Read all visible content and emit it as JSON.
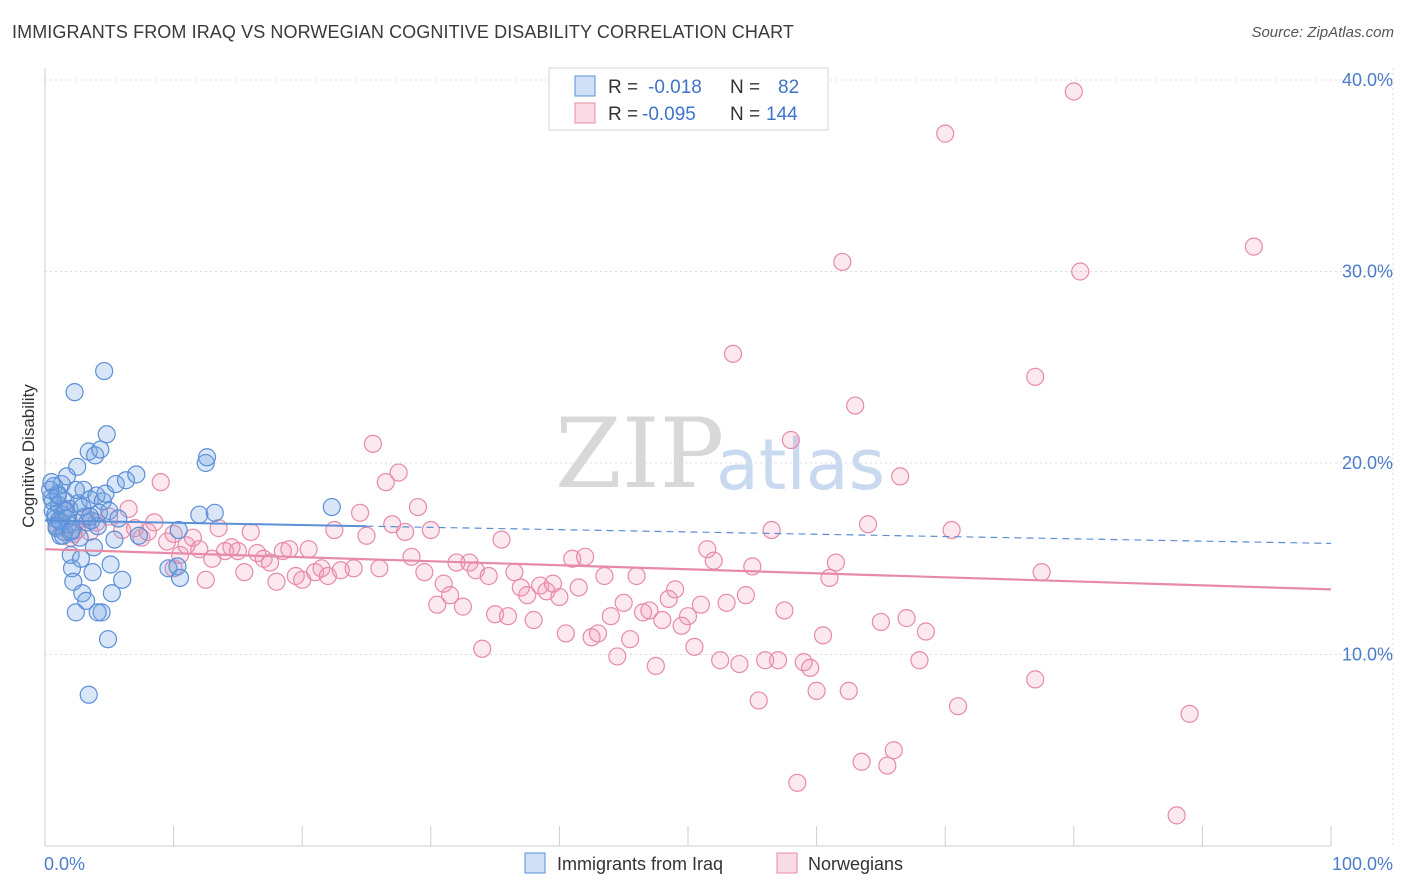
{
  "title": "IMMIGRANTS FROM IRAQ VS NORWEGIAN COGNITIVE DISABILITY CORRELATION CHART",
  "source": "Source: ZipAtlas.com",
  "watermark": {
    "zip": "ZIP",
    "atlas": "atlas"
  },
  "colors": {
    "iraq": "#5b8fd6",
    "norwegians": "#e68aa8",
    "accent": "#4a7cc9"
  },
  "legend": {
    "rows": [
      {
        "r_label": "R =",
        "r_value": "-0.018",
        "n_label": "N =",
        "n_value": "82"
      },
      {
        "r_label": "R =",
        "r_value": "-0.095",
        "n_label": "N =",
        "n_value": "144"
      }
    ]
  },
  "chart_data": {
    "type": "scatter",
    "title": "IMMIGRANTS FROM IRAQ VS NORWEGIAN COGNITIVE DISABILITY CORRELATION CHART",
    "xlabel": "",
    "ylabel": "Cognitive Disability",
    "xlim": [
      0,
      100
    ],
    "ylim": [
      0,
      40
    ],
    "x_tick_labels": [
      "0.0%",
      "100.0%"
    ],
    "y_ticks": [
      10,
      20,
      30,
      40
    ],
    "y_tick_labels": [
      "10.0%",
      "20.0%",
      "30.0%",
      "40.0%"
    ],
    "series": [
      {
        "name": "Immigrants from Iraq",
        "r": -0.018,
        "n": 82,
        "trend": {
          "x": [
            0,
            25,
            100
          ],
          "y": [
            17.0,
            16.7,
            15.8
          ],
          "solid_until": 25
        },
        "points": [
          [
            0.5,
            18.2
          ],
          [
            0.6,
            17.5
          ],
          [
            0.7,
            18.8
          ],
          [
            0.8,
            17.1
          ],
          [
            0.9,
            16.6
          ],
          [
            1.0,
            18.4
          ],
          [
            1.1,
            17.8
          ],
          [
            1.2,
            16.2
          ],
          [
            1.3,
            18.9
          ],
          [
            1.4,
            17.3
          ],
          [
            1.5,
            16.4
          ],
          [
            1.6,
            18.0
          ],
          [
            1.7,
            19.3
          ],
          [
            1.8,
            16.8
          ],
          [
            1.9,
            17.6
          ],
          [
            2.0,
            15.2
          ],
          [
            2.1,
            14.5
          ],
          [
            2.2,
            13.8
          ],
          [
            2.3,
            23.7
          ],
          [
            2.4,
            12.2
          ],
          [
            2.5,
            19.8
          ],
          [
            2.6,
            17.9
          ],
          [
            2.7,
            16.1
          ],
          [
            2.8,
            15.0
          ],
          [
            2.9,
            13.2
          ],
          [
            3.0,
            18.6
          ],
          [
            3.1,
            17.2
          ],
          [
            3.2,
            12.8
          ],
          [
            3.3,
            16.9
          ],
          [
            3.4,
            20.6
          ],
          [
            3.5,
            18.1
          ],
          [
            3.6,
            17.0
          ],
          [
            3.7,
            14.3
          ],
          [
            3.8,
            15.6
          ],
          [
            3.9,
            20.4
          ],
          [
            4.0,
            18.3
          ],
          [
            4.1,
            16.7
          ],
          [
            4.2,
            17.4
          ],
          [
            4.3,
            20.7
          ],
          [
            4.4,
            12.2
          ],
          [
            4.5,
            18.0
          ],
          [
            4.6,
            24.8
          ],
          [
            4.7,
            18.4
          ],
          [
            4.8,
            21.5
          ],
          [
            4.9,
            10.8
          ],
          [
            5.0,
            17.5
          ],
          [
            5.1,
            14.7
          ],
          [
            5.2,
            13.2
          ],
          [
            5.4,
            16.0
          ],
          [
            5.5,
            18.9
          ],
          [
            5.7,
            17.1
          ],
          [
            6.0,
            13.9
          ],
          [
            6.3,
            19.1
          ],
          [
            7.1,
            19.4
          ],
          [
            7.3,
            16.2
          ],
          [
            9.6,
            14.5
          ],
          [
            10.3,
            14.6
          ],
          [
            10.4,
            16.5
          ],
          [
            10.5,
            14.0
          ],
          [
            12.0,
            17.3
          ],
          [
            12.5,
            20.0
          ],
          [
            12.6,
            20.3
          ],
          [
            13.2,
            17.4
          ],
          [
            22.3,
            17.7
          ],
          [
            3.4,
            7.9
          ],
          [
            0.6,
            18.0
          ],
          [
            0.8,
            17.3
          ],
          [
            1.0,
            18.3
          ],
          [
            1.2,
            16.9
          ],
          [
            1.4,
            16.2
          ],
          [
            1.6,
            17.5
          ],
          [
            2.4,
            18.6
          ],
          [
            2.9,
            17.7
          ],
          [
            3.5,
            17.2
          ],
          [
            1.1,
            17.0
          ],
          [
            0.9,
            16.7
          ],
          [
            1.7,
            17.1
          ],
          [
            2.1,
            16.5
          ],
          [
            0.4,
            18.6
          ],
          [
            0.5,
            19.0
          ],
          [
            2.0,
            16.4
          ],
          [
            4.1,
            12.2
          ]
        ]
      },
      {
        "name": "Norwegians",
        "r": -0.095,
        "n": 144,
        "trend": {
          "x": [
            0,
            100
          ],
          "y": [
            15.5,
            13.4
          ]
        },
        "points": [
          [
            1.0,
            16.8
          ],
          [
            1.5,
            17.6
          ],
          [
            2.0,
            16.1
          ],
          [
            2.5,
            16.5
          ],
          [
            3.0,
            17.1
          ],
          [
            4.0,
            16.9
          ],
          [
            5.0,
            17.2
          ],
          [
            6.0,
            16.5
          ],
          [
            6.5,
            17.6
          ],
          [
            7.0,
            16.6
          ],
          [
            7.5,
            16.1
          ],
          [
            8.0,
            16.4
          ],
          [
            8.5,
            16.9
          ],
          [
            9.0,
            19.0
          ],
          [
            9.5,
            15.9
          ],
          [
            10.0,
            14.5
          ],
          [
            10.5,
            15.2
          ],
          [
            11.0,
            15.7
          ],
          [
            11.5,
            16.1
          ],
          [
            12.0,
            15.5
          ],
          [
            12.5,
            13.9
          ],
          [
            13.0,
            15.0
          ],
          [
            13.5,
            16.6
          ],
          [
            14.0,
            15.4
          ],
          [
            14.5,
            15.6
          ],
          [
            15.0,
            15.4
          ],
          [
            15.5,
            14.3
          ],
          [
            16.0,
            16.4
          ],
          [
            16.5,
            15.3
          ],
          [
            17.0,
            15.0
          ],
          [
            17.5,
            14.8
          ],
          [
            18.0,
            13.8
          ],
          [
            18.5,
            15.4
          ],
          [
            19.0,
            15.5
          ],
          [
            19.5,
            14.1
          ],
          [
            20.0,
            13.9
          ],
          [
            20.5,
            15.5
          ],
          [
            21.0,
            14.3
          ],
          [
            21.5,
            14.5
          ],
          [
            22.0,
            14.1
          ],
          [
            22.5,
            16.5
          ],
          [
            23.0,
            14.4
          ],
          [
            24.0,
            14.5
          ],
          [
            24.5,
            17.4
          ],
          [
            25.0,
            16.2
          ],
          [
            25.5,
            21.0
          ],
          [
            26.0,
            14.5
          ],
          [
            26.5,
            19.0
          ],
          [
            27.0,
            16.8
          ],
          [
            27.5,
            19.5
          ],
          [
            28.0,
            16.4
          ],
          [
            28.5,
            15.1
          ],
          [
            29.0,
            17.7
          ],
          [
            29.5,
            14.3
          ],
          [
            30.0,
            16.5
          ],
          [
            30.5,
            12.6
          ],
          [
            31.0,
            13.7
          ],
          [
            31.5,
            13.1
          ],
          [
            32.0,
            14.8
          ],
          [
            32.5,
            12.5
          ],
          [
            33.0,
            14.8
          ],
          [
            33.5,
            14.4
          ],
          [
            34.0,
            10.3
          ],
          [
            34.5,
            14.1
          ],
          [
            35.0,
            12.1
          ],
          [
            35.5,
            16.0
          ],
          [
            36.0,
            12.0
          ],
          [
            36.5,
            14.3
          ],
          [
            37.0,
            13.5
          ],
          [
            37.5,
            13.1
          ],
          [
            38.0,
            11.8
          ],
          [
            38.5,
            13.6
          ],
          [
            39.0,
            13.3
          ],
          [
            39.5,
            13.7
          ],
          [
            40.0,
            13.0
          ],
          [
            40.5,
            11.1
          ],
          [
            41.0,
            15.0
          ],
          [
            41.5,
            13.5
          ],
          [
            42.0,
            15.1
          ],
          [
            42.5,
            10.9
          ],
          [
            43.0,
            11.1
          ],
          [
            43.5,
            14.1
          ],
          [
            44.0,
            12.0
          ],
          [
            44.5,
            9.9
          ],
          [
            45.0,
            12.7
          ],
          [
            45.5,
            10.8
          ],
          [
            46.0,
            14.1
          ],
          [
            46.5,
            12.2
          ],
          [
            47.0,
            12.3
          ],
          [
            47.5,
            9.4
          ],
          [
            48.0,
            11.8
          ],
          [
            48.5,
            12.9
          ],
          [
            49.0,
            13.4
          ],
          [
            49.5,
            11.5
          ],
          [
            50.0,
            12.0
          ],
          [
            50.5,
            10.4
          ],
          [
            51.0,
            12.6
          ],
          [
            51.5,
            15.5
          ],
          [
            52.0,
            14.9
          ],
          [
            52.5,
            9.7
          ],
          [
            53.0,
            12.7
          ],
          [
            53.5,
            25.7
          ],
          [
            54.0,
            9.5
          ],
          [
            54.5,
            13.1
          ],
          [
            55.0,
            14.6
          ],
          [
            55.5,
            7.6
          ],
          [
            56.0,
            9.7
          ],
          [
            56.5,
            16.5
          ],
          [
            57.0,
            9.7
          ],
          [
            57.5,
            12.3
          ],
          [
            58.0,
            21.2
          ],
          [
            58.5,
            3.3
          ],
          [
            59.0,
            9.6
          ],
          [
            59.5,
            9.3
          ],
          [
            60.0,
            8.1
          ],
          [
            60.5,
            11.0
          ],
          [
            61.0,
            14.0
          ],
          [
            61.5,
            14.8
          ],
          [
            62.0,
            30.5
          ],
          [
            62.5,
            8.1
          ],
          [
            63.0,
            23.0
          ],
          [
            63.5,
            4.4
          ],
          [
            64.0,
            16.8
          ],
          [
            65.0,
            11.7
          ],
          [
            65.5,
            4.2
          ],
          [
            66.0,
            5.0
          ],
          [
            66.5,
            19.3
          ],
          [
            67.0,
            11.9
          ],
          [
            68.0,
            9.7
          ],
          [
            68.5,
            11.2
          ],
          [
            70.0,
            37.2
          ],
          [
            70.5,
            16.5
          ],
          [
            71.0,
            7.3
          ],
          [
            77.0,
            24.5
          ],
          [
            77.5,
            14.3
          ],
          [
            77.0,
            8.7
          ],
          [
            80.0,
            39.4
          ],
          [
            80.5,
            30.0
          ],
          [
            88.0,
            1.6
          ],
          [
            89.0,
            6.9
          ],
          [
            94.0,
            31.3
          ],
          [
            3.5,
            16.4
          ],
          [
            2.2,
            16.3
          ],
          [
            10.0,
            16.3
          ]
        ]
      }
    ],
    "legend_position": "top-center",
    "bottom_legend": [
      "Immigrants from Iraq",
      "Norwegians"
    ]
  }
}
